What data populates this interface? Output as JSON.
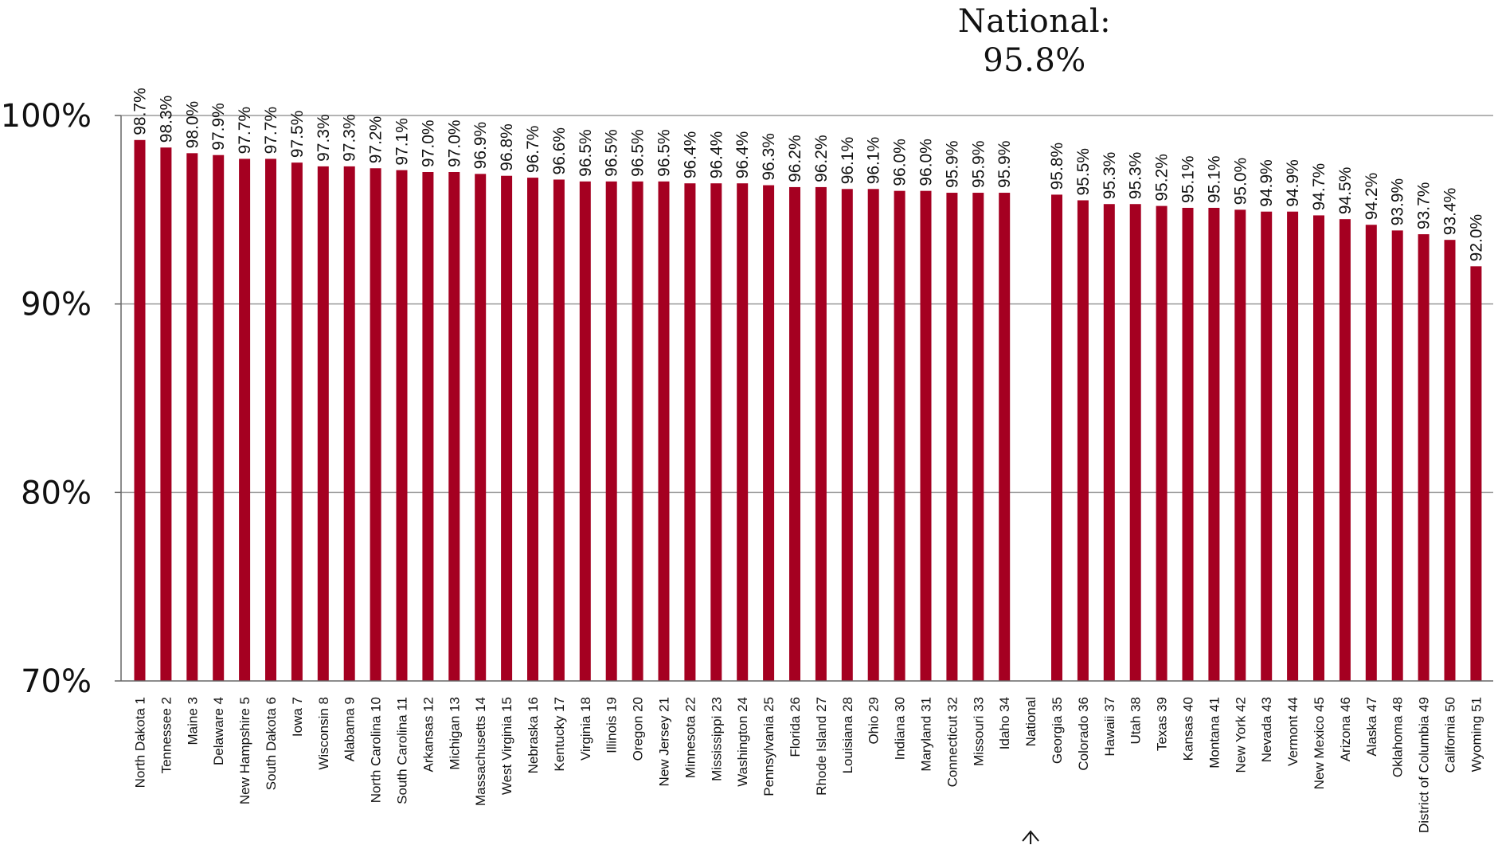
{
  "national_callout": {
    "label": "National:",
    "value_text": "95.8%"
  },
  "colors": {
    "bar": "#a50021",
    "gridline": "#9a9a9a",
    "axis": "#666666",
    "text": "#111111"
  },
  "chart_data": {
    "type": "bar",
    "categories": [
      "North Dakota  1",
      "Tennessee  2",
      "Maine  3",
      "Delaware  4",
      "New Hampshire  5",
      "South Dakota  6",
      "Iowa  7",
      "Wisconsin  8",
      "Alabama  9",
      "North Carolina 10",
      "South Carolina 11",
      "Arkansas 12",
      "Michigan 13",
      "Massachusetts 14",
      "West Virginia 15",
      "Nebraska 16",
      "Kentucky 17",
      "Virginia 18",
      "Illinois 19",
      "Oregon 20",
      "New Jersey 21",
      "Minnesota 22",
      "Mississippi 23",
      "Washington 24",
      "Pennsylvania 25",
      "Florida 26",
      "Rhode Island 27",
      "Louisiana 28",
      "Ohio 29",
      "Indiana 30",
      "Maryland 31",
      "Connecticut 32",
      "Missouri 33",
      "Idaho 34",
      "National",
      "Georgia 35",
      "Colorado 36",
      "Hawaii 37",
      "Utah 38",
      "Texas 39",
      "Kansas 40",
      "Montana 41",
      "New York 42",
      "Nevada 43",
      "Vermont 44",
      "New Mexico 45",
      "Arizona 46",
      "Alaska 47",
      "Oklahoma 48",
      "District of Columbia 49",
      "California 50",
      "Wyoming 51"
    ],
    "values": [
      98.7,
      98.3,
      98.0,
      97.9,
      97.7,
      97.7,
      97.5,
      97.3,
      97.3,
      97.2,
      97.1,
      97.0,
      97.0,
      96.9,
      96.8,
      96.7,
      96.6,
      96.5,
      96.5,
      96.5,
      96.5,
      96.4,
      96.4,
      96.4,
      96.3,
      96.2,
      96.2,
      96.1,
      96.1,
      96.0,
      96.0,
      95.9,
      95.9,
      95.9,
      95.8,
      95.8,
      95.5,
      95.3,
      95.3,
      95.2,
      95.1,
      95.1,
      95.0,
      94.9,
      94.9,
      94.7,
      94.5,
      94.2,
      93.9,
      93.7,
      93.4,
      92.0
    ],
    "value_labels": [
      "98.7%",
      "98.3%",
      "98.0%",
      "97.9%",
      "97.7%",
      "97.7%",
      "97.5%",
      "97.3%",
      "97.3%",
      "97.2%",
      "97.1%",
      "97.0%",
      "97.0%",
      "96.9%",
      "96.8%",
      "96.7%",
      "96.6%",
      "96.5%",
      "96.5%",
      "96.5%",
      "96.5%",
      "96.4%",
      "96.4%",
      "96.4%",
      "96.3%",
      "96.2%",
      "96.2%",
      "96.1%",
      "96.1%",
      "96.0%",
      "96.0%",
      "95.9%",
      "95.9%",
      "95.9%",
      "95.8%",
      "95.8%",
      "95.5%",
      "95.3%",
      "95.3%",
      "95.2%",
      "95.1%",
      "95.1%",
      "95.0%",
      "94.9%",
      "94.9%",
      "94.7%",
      "94.5%",
      "94.2%",
      "93.9%",
      "93.7%",
      "93.4%",
      "92.0%"
    ],
    "show_bar": [
      true,
      true,
      true,
      true,
      true,
      true,
      true,
      true,
      true,
      true,
      true,
      true,
      true,
      true,
      true,
      true,
      true,
      true,
      true,
      true,
      true,
      true,
      true,
      true,
      true,
      true,
      true,
      true,
      true,
      true,
      true,
      true,
      true,
      true,
      false,
      true,
      true,
      true,
      true,
      true,
      true,
      true,
      true,
      true,
      true,
      true,
      true,
      true,
      true,
      true,
      true,
      true
    ],
    "yticks": [
      70,
      80,
      90,
      100
    ],
    "ytick_labels": [
      "70%",
      "80%",
      "90%",
      "100%"
    ],
    "ylim": [
      70,
      100
    ],
    "grid": true,
    "title": "",
    "xlabel": "",
    "ylabel": ""
  }
}
